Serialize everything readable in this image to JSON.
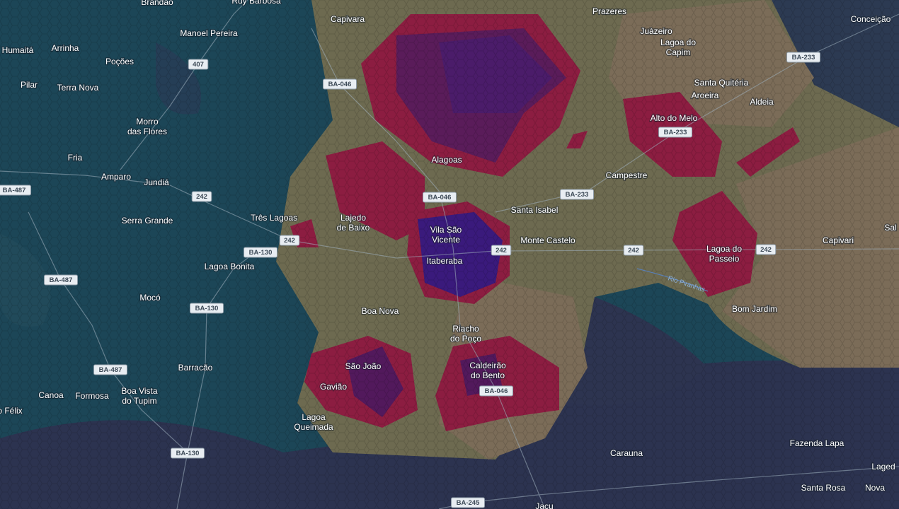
{
  "places": [
    [
      "Brandão"
    ],
    [
      "Ruy Barbosa"
    ],
    [
      "Capivara"
    ],
    [
      "Prazeres"
    ],
    [
      "Juàzeiro"
    ],
    [
      "Lagoa do",
      "Capim"
    ],
    [
      "Conceição"
    ],
    [
      "Manoel Pereira"
    ],
    [
      "Humaitá"
    ],
    [
      "Arrinha"
    ],
    [
      "Poções"
    ],
    [
      "Pilar"
    ],
    [
      "Terra Nova"
    ],
    [
      "Morro",
      "das Flores"
    ],
    [
      "Santa Quitéria"
    ],
    [
      "Aroeira"
    ],
    [
      "Aldeia"
    ],
    [
      "Alto do Melo"
    ],
    [
      "Fria"
    ],
    [
      "Alagoas"
    ],
    [
      "Amparo"
    ],
    [
      "Jundiá"
    ],
    [
      "Campestre"
    ],
    [
      "Santa Isabel"
    ],
    [
      "Três Lagoas"
    ],
    [
      "Lajedo",
      "de Baixo"
    ],
    [
      "Serra Grande"
    ],
    [
      "Vila São",
      "Vicente"
    ],
    [
      "Monte Castelo"
    ],
    [
      "Capivari"
    ],
    [
      "Sal"
    ],
    [
      "Lagoa do",
      "Passeio"
    ],
    [
      "Itaberaba"
    ],
    [
      "Lagoa Bonita"
    ],
    [
      "Mocó"
    ],
    [
      "Bom Jardim"
    ],
    [
      "Boa Nova"
    ],
    [
      "Riacho",
      "do Poço"
    ],
    [
      "São João"
    ],
    [
      "Caldeirão",
      "do Bento"
    ],
    [
      "Barracão"
    ],
    [
      "Gavião"
    ],
    [
      "Boa Vista",
      "do Tupim"
    ],
    [
      "Canoa"
    ],
    [
      "Formosa"
    ],
    [
      "o Félix"
    ],
    [
      "Lagoa",
      "Queimada"
    ],
    [
      "Carauna"
    ],
    [
      "Fazenda Lapa"
    ],
    [
      "Laged"
    ],
    [
      "Santa Rosa"
    ],
    [
      "Nova"
    ],
    [
      "Jacu"
    ]
  ],
  "road_shields": [
    "407",
    "BA-046",
    "BA-233",
    "BA-233",
    "BA-487",
    "242",
    "BA-046",
    "BA-233",
    "242",
    "BA-130",
    "242",
    "242",
    "242",
    "BA-487",
    "BA-130",
    "BA-487",
    "BA-046",
    "BA-130",
    "BA-245"
  ],
  "river": "Rio Piranhas"
}
